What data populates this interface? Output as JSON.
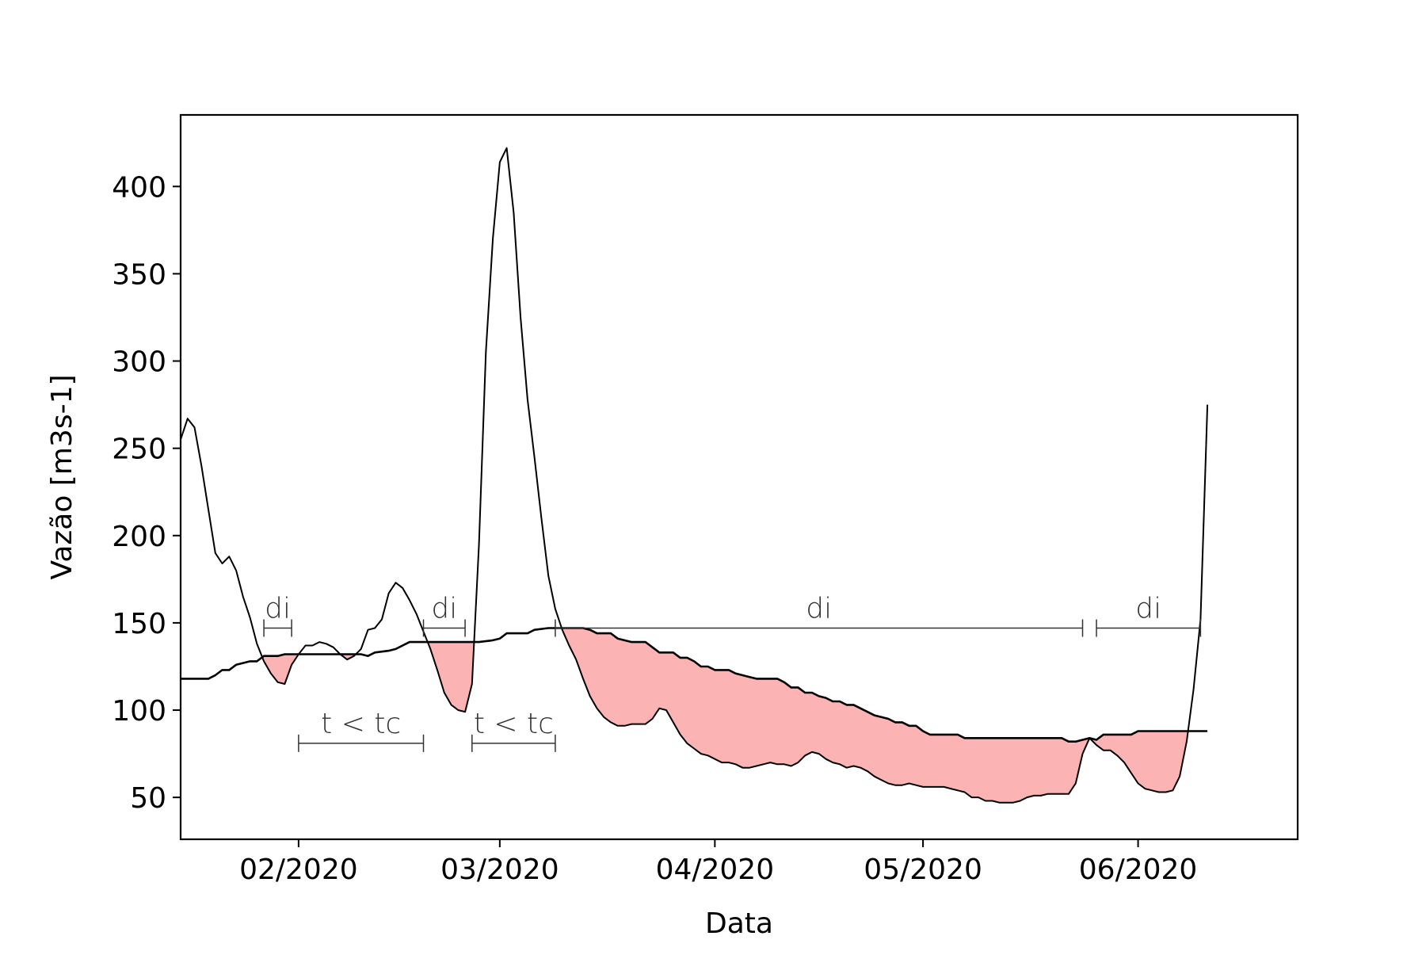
{
  "chart_data": {
    "type": "line",
    "title": "",
    "xlabel": "Data",
    "ylabel": "Vazão [m3s-1]",
    "x_axis": {
      "kind": "date",
      "range": [
        "2020-01-15",
        "2020-06-24"
      ],
      "ticks": [
        {
          "date": "2020-02-01",
          "label": "02/2020"
        },
        {
          "date": "2020-03-01",
          "label": "03/2020"
        },
        {
          "date": "2020-04-01",
          "label": "04/2020"
        },
        {
          "date": "2020-05-01",
          "label": "05/2020"
        },
        {
          "date": "2020-06-01",
          "label": "06/2020"
        }
      ]
    },
    "y_axis": {
      "range": [
        26,
        441
      ],
      "ticks": [
        50,
        100,
        150,
        200,
        250,
        300,
        350,
        400
      ]
    },
    "grid": false,
    "legend": "none",
    "colors": {
      "line": "#000000",
      "fill": "#fbb3b3",
      "annotation": "#333333"
    },
    "series": [
      {
        "role": "flow",
        "points": [
          [
            "2020-01-15",
            255
          ],
          [
            "2020-01-16",
            267
          ],
          [
            "2020-01-17",
            262
          ],
          [
            "2020-01-18",
            240
          ],
          [
            "2020-01-19",
            215
          ],
          [
            "2020-01-20",
            190
          ],
          [
            "2020-01-21",
            184
          ],
          [
            "2020-01-22",
            188
          ],
          [
            "2020-01-23",
            180
          ],
          [
            "2020-01-24",
            165
          ],
          [
            "2020-01-25",
            153
          ],
          [
            "2020-01-26",
            138
          ],
          [
            "2020-01-27",
            128
          ],
          [
            "2020-01-28",
            121
          ],
          [
            "2020-01-29",
            116
          ],
          [
            "2020-01-30",
            115
          ],
          [
            "2020-01-31",
            126
          ],
          [
            "2020-02-01",
            132
          ],
          [
            "2020-02-02",
            137
          ],
          [
            "2020-02-03",
            137
          ],
          [
            "2020-02-04",
            139
          ],
          [
            "2020-02-05",
            138
          ],
          [
            "2020-02-06",
            136
          ],
          [
            "2020-02-07",
            132
          ],
          [
            "2020-02-08",
            129
          ],
          [
            "2020-02-09",
            131
          ],
          [
            "2020-02-10",
            135
          ],
          [
            "2020-02-11",
            146
          ],
          [
            "2020-02-12",
            147
          ],
          [
            "2020-02-13",
            152
          ],
          [
            "2020-02-14",
            167
          ],
          [
            "2020-02-15",
            173
          ],
          [
            "2020-02-16",
            170
          ],
          [
            "2020-02-17",
            163
          ],
          [
            "2020-02-18",
            155
          ],
          [
            "2020-02-19",
            145
          ],
          [
            "2020-02-20",
            135
          ],
          [
            "2020-02-21",
            123
          ],
          [
            "2020-02-22",
            110
          ],
          [
            "2020-02-23",
            103
          ],
          [
            "2020-02-24",
            100
          ],
          [
            "2020-02-25",
            99
          ],
          [
            "2020-02-26",
            115
          ],
          [
            "2020-02-27",
            195
          ],
          [
            "2020-02-28",
            305
          ],
          [
            "2020-02-29",
            370
          ],
          [
            "2020-03-01",
            414
          ],
          [
            "2020-03-02",
            422
          ],
          [
            "2020-03-03",
            385
          ],
          [
            "2020-03-04",
            325
          ],
          [
            "2020-03-05",
            278
          ],
          [
            "2020-03-06",
            245
          ],
          [
            "2020-03-07",
            210
          ],
          [
            "2020-03-08",
            177
          ],
          [
            "2020-03-09",
            158
          ],
          [
            "2020-03-10",
            146
          ],
          [
            "2020-03-11",
            137
          ],
          [
            "2020-03-12",
            129
          ],
          [
            "2020-03-13",
            118
          ],
          [
            "2020-03-14",
            108
          ],
          [
            "2020-03-15",
            101
          ],
          [
            "2020-03-16",
            96
          ],
          [
            "2020-03-17",
            93
          ],
          [
            "2020-03-18",
            91
          ],
          [
            "2020-03-19",
            91
          ],
          [
            "2020-03-20",
            92
          ],
          [
            "2020-03-21",
            92
          ],
          [
            "2020-03-22",
            92
          ],
          [
            "2020-03-23",
            95
          ],
          [
            "2020-03-24",
            101
          ],
          [
            "2020-03-25",
            100
          ],
          [
            "2020-03-26",
            93
          ],
          [
            "2020-03-27",
            86
          ],
          [
            "2020-03-28",
            81
          ],
          [
            "2020-03-29",
            78
          ],
          [
            "2020-03-30",
            75
          ],
          [
            "2020-03-31",
            74
          ],
          [
            "2020-04-01",
            72
          ],
          [
            "2020-04-02",
            70
          ],
          [
            "2020-04-03",
            70
          ],
          [
            "2020-04-04",
            69
          ],
          [
            "2020-04-05",
            67
          ],
          [
            "2020-04-06",
            67
          ],
          [
            "2020-04-07",
            68
          ],
          [
            "2020-04-08",
            69
          ],
          [
            "2020-04-09",
            70
          ],
          [
            "2020-04-10",
            69
          ],
          [
            "2020-04-11",
            69
          ],
          [
            "2020-04-12",
            68
          ],
          [
            "2020-04-13",
            70
          ],
          [
            "2020-04-14",
            74
          ],
          [
            "2020-04-15",
            76
          ],
          [
            "2020-04-16",
            75
          ],
          [
            "2020-04-17",
            72
          ],
          [
            "2020-04-18",
            70
          ],
          [
            "2020-04-19",
            69
          ],
          [
            "2020-04-20",
            67
          ],
          [
            "2020-04-21",
            68
          ],
          [
            "2020-04-22",
            67
          ],
          [
            "2020-04-23",
            65
          ],
          [
            "2020-04-24",
            62
          ],
          [
            "2020-04-25",
            60
          ],
          [
            "2020-04-26",
            58
          ],
          [
            "2020-04-27",
            57
          ],
          [
            "2020-04-28",
            57
          ],
          [
            "2020-04-29",
            58
          ],
          [
            "2020-04-30",
            57
          ],
          [
            "2020-05-01",
            56
          ],
          [
            "2020-05-02",
            56
          ],
          [
            "2020-05-03",
            56
          ],
          [
            "2020-05-04",
            56
          ],
          [
            "2020-05-05",
            55
          ],
          [
            "2020-05-06",
            54
          ],
          [
            "2020-05-07",
            53
          ],
          [
            "2020-05-08",
            50
          ],
          [
            "2020-05-09",
            50
          ],
          [
            "2020-05-10",
            48
          ],
          [
            "2020-05-11",
            48
          ],
          [
            "2020-05-12",
            47
          ],
          [
            "2020-05-13",
            47
          ],
          [
            "2020-05-14",
            47
          ],
          [
            "2020-05-15",
            48
          ],
          [
            "2020-05-16",
            50
          ],
          [
            "2020-05-17",
            51
          ],
          [
            "2020-05-18",
            51
          ],
          [
            "2020-05-19",
            52
          ],
          [
            "2020-05-20",
            52
          ],
          [
            "2020-05-21",
            52
          ],
          [
            "2020-05-22",
            52
          ],
          [
            "2020-05-23",
            58
          ],
          [
            "2020-05-24",
            75
          ],
          [
            "2020-05-25",
            84
          ],
          [
            "2020-05-26",
            80
          ],
          [
            "2020-05-27",
            77
          ],
          [
            "2020-05-28",
            77
          ],
          [
            "2020-05-29",
            74
          ],
          [
            "2020-05-30",
            70
          ],
          [
            "2020-05-31",
            64
          ],
          [
            "2020-06-01",
            58
          ],
          [
            "2020-06-02",
            55
          ],
          [
            "2020-06-03",
            54
          ],
          [
            "2020-06-04",
            53
          ],
          [
            "2020-06-05",
            53
          ],
          [
            "2020-06-06",
            54
          ],
          [
            "2020-06-07",
            62
          ],
          [
            "2020-06-08",
            82
          ],
          [
            "2020-06-09",
            112
          ],
          [
            "2020-06-10",
            152
          ],
          [
            "2020-06-11",
            275
          ]
        ]
      },
      {
        "role": "threshold",
        "points": [
          [
            "2020-01-15",
            118
          ],
          [
            "2020-01-19",
            118
          ],
          [
            "2020-01-20",
            120
          ],
          [
            "2020-01-21",
            123
          ],
          [
            "2020-01-22",
            123
          ],
          [
            "2020-01-23",
            126
          ],
          [
            "2020-01-24",
            127
          ],
          [
            "2020-01-25",
            128
          ],
          [
            "2020-01-26",
            128
          ],
          [
            "2020-01-27",
            131
          ],
          [
            "2020-01-29",
            131
          ],
          [
            "2020-01-30",
            132
          ],
          [
            "2020-02-10",
            132
          ],
          [
            "2020-02-11",
            131
          ],
          [
            "2020-02-12",
            133
          ],
          [
            "2020-02-14",
            134
          ],
          [
            "2020-02-15",
            135
          ],
          [
            "2020-02-16",
            137
          ],
          [
            "2020-02-17",
            139
          ],
          [
            "2020-02-26",
            139
          ],
          [
            "2020-02-27",
            139
          ],
          [
            "2020-02-29",
            140
          ],
          [
            "2020-03-01",
            141
          ],
          [
            "2020-03-02",
            144
          ],
          [
            "2020-03-05",
            144
          ],
          [
            "2020-03-06",
            146
          ],
          [
            "2020-03-08",
            147
          ],
          [
            "2020-03-13",
            147
          ],
          [
            "2020-03-14",
            146
          ],
          [
            "2020-03-15",
            144
          ],
          [
            "2020-03-17",
            144
          ],
          [
            "2020-03-18",
            141
          ],
          [
            "2020-03-20",
            139
          ],
          [
            "2020-03-22",
            139
          ],
          [
            "2020-03-23",
            136
          ],
          [
            "2020-03-24",
            133
          ],
          [
            "2020-03-26",
            133
          ],
          [
            "2020-03-27",
            130
          ],
          [
            "2020-03-28",
            130
          ],
          [
            "2020-03-29",
            128
          ],
          [
            "2020-03-30",
            125
          ],
          [
            "2020-03-31",
            125
          ],
          [
            "2020-04-01",
            123
          ],
          [
            "2020-04-03",
            123
          ],
          [
            "2020-04-04",
            121
          ],
          [
            "2020-04-05",
            120
          ],
          [
            "2020-04-06",
            119
          ],
          [
            "2020-04-07",
            118
          ],
          [
            "2020-04-10",
            118
          ],
          [
            "2020-04-11",
            116
          ],
          [
            "2020-04-12",
            113
          ],
          [
            "2020-04-13",
            113
          ],
          [
            "2020-04-14",
            110
          ],
          [
            "2020-04-15",
            110
          ],
          [
            "2020-04-16",
            108
          ],
          [
            "2020-04-17",
            107
          ],
          [
            "2020-04-18",
            105
          ],
          [
            "2020-04-19",
            105
          ],
          [
            "2020-04-20",
            103
          ],
          [
            "2020-04-21",
            103
          ],
          [
            "2020-04-22",
            101
          ],
          [
            "2020-04-23",
            99
          ],
          [
            "2020-04-24",
            97
          ],
          [
            "2020-04-25",
            96
          ],
          [
            "2020-04-26",
            95
          ],
          [
            "2020-04-27",
            93
          ],
          [
            "2020-04-28",
            93
          ],
          [
            "2020-04-29",
            91
          ],
          [
            "2020-04-30",
            91
          ],
          [
            "2020-05-01",
            88
          ],
          [
            "2020-05-02",
            86
          ],
          [
            "2020-05-06",
            86
          ],
          [
            "2020-05-07",
            84
          ],
          [
            "2020-05-21",
            84
          ],
          [
            "2020-05-22",
            82
          ],
          [
            "2020-05-23",
            82
          ],
          [
            "2020-05-24",
            83
          ],
          [
            "2020-05-25",
            84
          ],
          [
            "2020-05-26",
            83
          ],
          [
            "2020-05-27",
            86
          ],
          [
            "2020-05-31",
            86
          ],
          [
            "2020-06-01",
            88
          ],
          [
            "2020-06-11",
            88
          ]
        ]
      }
    ],
    "annotations": [
      {
        "label": "di",
        "start": "2020-01-27",
        "end": "2020-01-31",
        "y": 147
      },
      {
        "label": "di",
        "start": "2020-02-19",
        "end": "2020-02-25",
        "y": 147
      },
      {
        "label": "di",
        "start": "2020-03-09",
        "end": "2020-05-24",
        "y": 147
      },
      {
        "label": "di",
        "start": "2020-05-26",
        "end": "2020-06-10",
        "y": 147
      },
      {
        "label": "t < tc",
        "start": "2020-02-01",
        "end": "2020-02-19",
        "y": 81
      },
      {
        "label": "t < tc",
        "start": "2020-02-26",
        "end": "2020-03-09",
        "y": 81
      }
    ]
  }
}
